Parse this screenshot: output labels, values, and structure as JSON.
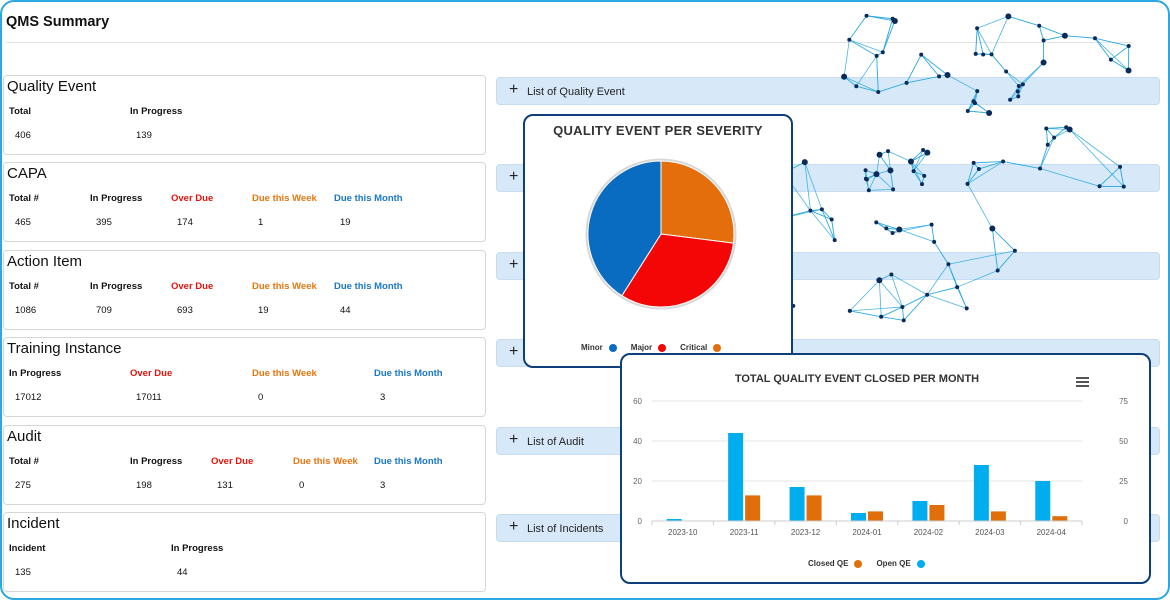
{
  "page": {
    "title": "QMS Summary"
  },
  "cards": {
    "quality_event": {
      "title": "Quality Event",
      "columns": [
        {
          "label": "Total",
          "value": "406",
          "tone": ""
        },
        {
          "label": "In Progress",
          "value": "139",
          "tone": ""
        }
      ]
    },
    "capa": {
      "title": "CAPA",
      "columns": [
        {
          "label": "Total #",
          "value": "465",
          "tone": ""
        },
        {
          "label": "In Progress",
          "value": "395",
          "tone": ""
        },
        {
          "label": "Over Due",
          "value": "174",
          "tone": "red"
        },
        {
          "label": "Due this Week",
          "value": "1",
          "tone": "orange"
        },
        {
          "label": "Due this Month",
          "value": "19",
          "tone": "blue"
        }
      ]
    },
    "action_item": {
      "title": "Action Item",
      "columns": [
        {
          "label": "Total #",
          "value": "1086",
          "tone": ""
        },
        {
          "label": "In Progress",
          "value": "709",
          "tone": ""
        },
        {
          "label": "Over Due",
          "value": "693",
          "tone": "red"
        },
        {
          "label": "Due this Week",
          "value": "19",
          "tone": "orange"
        },
        {
          "label": "Due this Month",
          "value": "44",
          "tone": "blue"
        }
      ]
    },
    "training_instance": {
      "title": "Training Instance",
      "columns": [
        {
          "label": "In Progress",
          "value": "17012",
          "tone": ""
        },
        {
          "label": "Over Due",
          "value": "17011",
          "tone": "red"
        },
        {
          "label": "Due this Week",
          "value": "0",
          "tone": "orange"
        },
        {
          "label": "Due this Month",
          "value": "3",
          "tone": "blue"
        }
      ]
    },
    "audit": {
      "title": "Audit",
      "columns": [
        {
          "label": "Total #",
          "value": "275",
          "tone": ""
        },
        {
          "label": "In Progress",
          "value": "198",
          "tone": ""
        },
        {
          "label": "Over Due",
          "value": "131",
          "tone": "red"
        },
        {
          "label": "Due this Week",
          "value": "0",
          "tone": "orange"
        },
        {
          "label": "Due this Month",
          "value": "3",
          "tone": "blue"
        }
      ]
    },
    "incident": {
      "title": "Incident",
      "columns": [
        {
          "label": "Incident",
          "value": "135",
          "tone": ""
        },
        {
          "label": "In Progress",
          "value": "44",
          "tone": ""
        }
      ]
    }
  },
  "accordions": {
    "quality_event": {
      "icon": "+",
      "label": "List of Quality Event"
    },
    "capa": {
      "icon": "+",
      "label": ""
    },
    "action_item": {
      "icon": "+",
      "label": ""
    },
    "training": {
      "icon": "+",
      "label": ""
    },
    "audit": {
      "icon": "+",
      "label": "List of Audit"
    },
    "incidents": {
      "icon": "+",
      "label": "List of Incidents"
    }
  },
  "icons": {
    "menu": "hamburger-menu-icon",
    "expand": "plus-icon",
    "decoration": "network-graph"
  },
  "colors": {
    "minor": "#0a6cc1",
    "major": "#f50606",
    "critical": "#e46e0c",
    "open_qe": "#00adef",
    "closed_qe": "#e06f0b",
    "panel_border": "#0f3f7a",
    "frame": "#29a9df",
    "overdue": "#e3120b",
    "due_week": "#e8760f",
    "due_month": "#1b78c8"
  },
  "chart_data": [
    {
      "type": "pie",
      "title": "QUALITY EVENT PER SEVERITY",
      "categories": [
        "Minor",
        "Major",
        "Critical"
      ],
      "values": [
        41,
        32,
        27
      ],
      "colors": [
        "#0a6cc1",
        "#f50606",
        "#e46e0c"
      ],
      "legend": "bottom"
    },
    {
      "type": "bar",
      "title": "TOTAL QUALITY EVENT CLOSED PER MONTH",
      "categories": [
        "2023-10",
        "2023-11",
        "2023-12",
        "2024-01",
        "2024-02",
        "2024-03",
        "2024-04"
      ],
      "series": [
        {
          "name": "Open QE",
          "values": [
            1,
            44,
            17,
            4,
            10,
            28,
            20
          ],
          "color": "#00adef",
          "axis": "left"
        },
        {
          "name": "Closed QE",
          "values": [
            0,
            16,
            16,
            6,
            10,
            6,
            3
          ],
          "color": "#e06f0b",
          "axis": "right"
        }
      ],
      "y_left": {
        "min": 0,
        "max": 60,
        "ticks": [
          "0",
          "20",
          "40",
          "60"
        ]
      },
      "y_right": {
        "min": 0,
        "max": 75,
        "ticks": [
          "0",
          "25",
          "50",
          "75"
        ]
      },
      "legend_order": [
        "Closed QE",
        "Open QE"
      ],
      "legend": "bottom",
      "grid": true
    }
  ]
}
